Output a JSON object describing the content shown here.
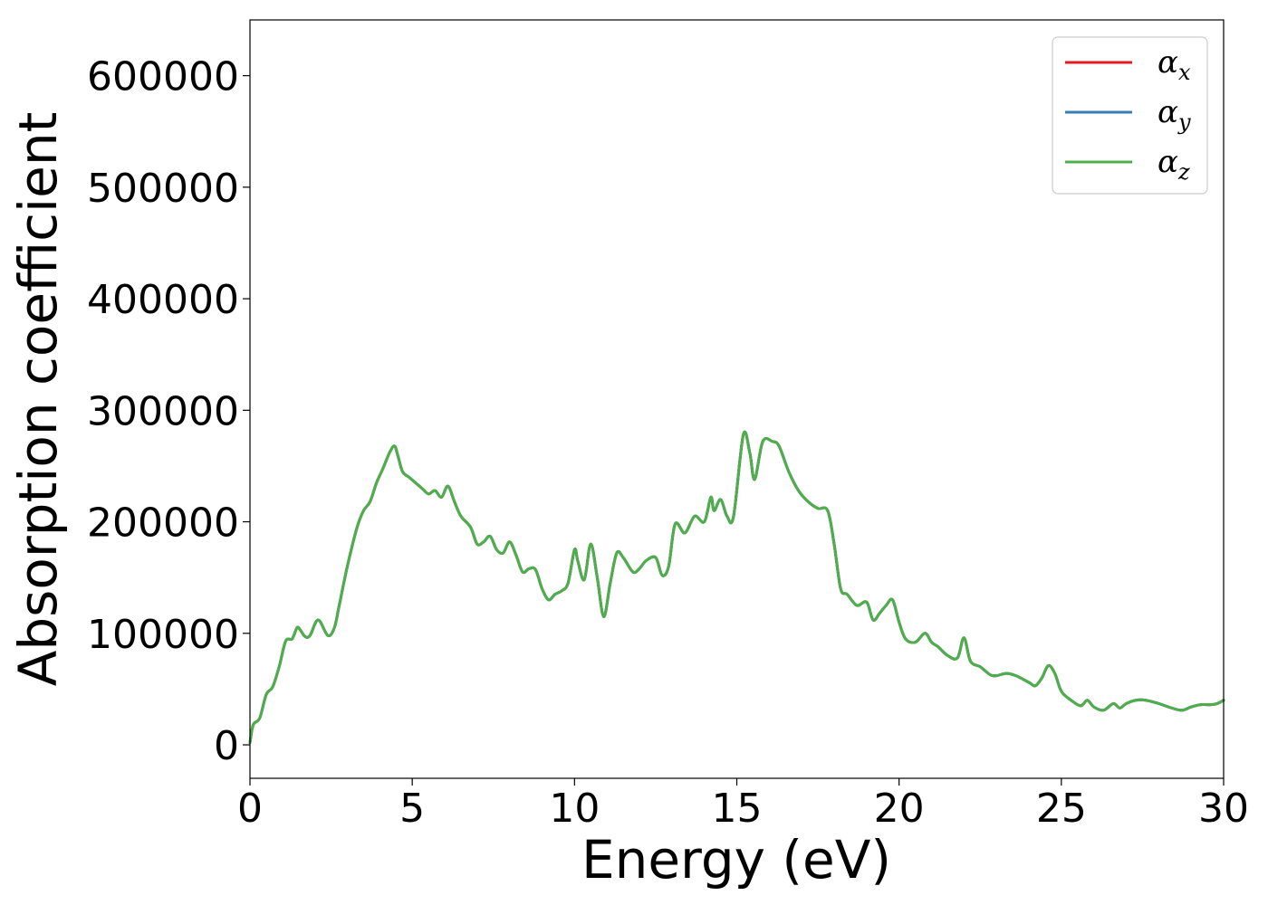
{
  "chart_data": {
    "type": "line",
    "xlabel": "Energy (eV)",
    "ylabel": "Absorption coefficient",
    "xlim": [
      0,
      30
    ],
    "ylim": [
      -30000,
      650000
    ],
    "x_ticks": [
      0,
      5,
      10,
      15,
      20,
      25,
      30
    ],
    "x_tick_labels": [
      "0",
      "5",
      "10",
      "15",
      "20",
      "25",
      "30"
    ],
    "y_ticks": [
      0,
      100000,
      200000,
      300000,
      400000,
      500000,
      600000
    ],
    "y_tick_labels": [
      "0",
      "100000",
      "200000",
      "300000",
      "400000",
      "500000",
      "600000"
    ],
    "grid": false,
    "legend_position": "top-right",
    "series": [
      {
        "name": "α",
        "sub": "x",
        "color": "#e41a1c"
      },
      {
        "name": "α",
        "sub": "y",
        "color": "#377eb8"
      },
      {
        "name": "α",
        "sub": "z",
        "color": "#4daf4a"
      }
    ],
    "x": [
      0,
      0.1,
      0.3,
      0.5,
      0.7,
      0.9,
      1.1,
      1.3,
      1.45,
      1.55,
      1.7,
      1.85,
      2.1,
      2.4,
      2.6,
      2.75,
      3.0,
      3.3,
      3.5,
      3.7,
      3.9,
      4.1,
      4.3,
      4.45,
      4.55,
      4.7,
      4.9,
      5.1,
      5.3,
      5.5,
      5.7,
      5.9,
      6.1,
      6.3,
      6.5,
      6.8,
      7.0,
      7.2,
      7.4,
      7.6,
      7.8,
      8.0,
      8.2,
      8.4,
      8.6,
      8.8,
      9.0,
      9.2,
      9.4,
      9.6,
      9.8,
      10.0,
      10.1,
      10.3,
      10.5,
      10.7,
      10.9,
      11.1,
      11.3,
      11.5,
      11.8,
      12.0,
      12.2,
      12.5,
      12.7,
      12.9,
      13.1,
      13.4,
      13.7,
      14.0,
      14.2,
      14.3,
      14.5,
      14.7,
      14.9,
      15.2,
      15.4,
      15.55,
      15.8,
      16.1,
      16.3,
      16.6,
      16.9,
      17.2,
      17.5,
      17.8,
      18.0,
      18.2,
      18.4,
      18.7,
      19.0,
      19.2,
      19.4,
      19.6,
      19.8,
      20.0,
      20.2,
      20.5,
      20.8,
      21.0,
      21.2,
      21.5,
      21.8,
      22.0,
      22.2,
      22.5,
      22.8,
      23.0,
      23.3,
      23.6,
      24.0,
      24.2,
      24.4,
      24.6,
      24.8,
      25.0,
      25.3,
      25.6,
      25.8,
      26.0,
      26.3,
      26.6,
      26.8,
      27.0,
      27.3,
      27.6,
      28.0,
      28.3,
      28.7,
      29.0,
      29.3,
      29.6,
      29.8,
      30.0
    ],
    "values": [
      2000,
      18000,
      24000,
      45000,
      52000,
      70000,
      93000,
      95000,
      105000,
      103000,
      97000,
      98000,
      112000,
      98000,
      105000,
      125000,
      160000,
      195000,
      210000,
      218000,
      235000,
      248000,
      262000,
      268000,
      260000,
      245000,
      240000,
      235000,
      230000,
      225000,
      228000,
      222000,
      232000,
      218000,
      205000,
      195000,
      180000,
      182000,
      187000,
      175000,
      172000,
      182000,
      170000,
      155000,
      158000,
      157000,
      140000,
      130000,
      135000,
      138000,
      145000,
      175000,
      165000,
      148000,
      180000,
      150000,
      115000,
      145000,
      172000,
      168000,
      155000,
      158000,
      165000,
      168000,
      152000,
      160000,
      198000,
      190000,
      205000,
      200000,
      222000,
      210000,
      220000,
      205000,
      205000,
      278000,
      262000,
      238000,
      272000,
      272000,
      268000,
      245000,
      228000,
      218000,
      212000,
      210000,
      180000,
      140000,
      135000,
      125000,
      128000,
      112000,
      118000,
      125000,
      130000,
      110000,
      95000,
      92000,
      100000,
      92000,
      88000,
      80000,
      78000,
      96000,
      75000,
      70000,
      63000,
      62000,
      64000,
      62000,
      56000,
      53000,
      60000,
      71000,
      64000,
      48000,
      40000,
      35000,
      40000,
      34000,
      31000,
      37000,
      33000,
      37000,
      40000,
      40000,
      37000,
      34000,
      31000,
      34000,
      36000,
      36000,
      37000,
      40000
    ]
  }
}
